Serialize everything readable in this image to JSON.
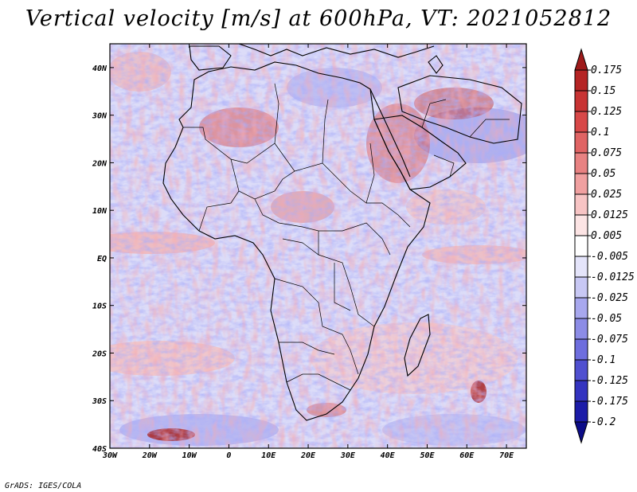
{
  "title": "Vertical velocity [m/s] at 600hPa, VT: 2021052812",
  "credit": "GrADS: IGES/COLA",
  "map": {
    "region": "Africa and Middle East",
    "lon_range": [
      -30,
      75
    ],
    "lat_range": [
      -40,
      45
    ],
    "lon_ticks": [
      "30W",
      "20W",
      "10W",
      "0",
      "10E",
      "20E",
      "30E",
      "40E",
      "50E",
      "60E",
      "70E"
    ],
    "lat_ticks": [
      "40N",
      "30N",
      "20N",
      "10N",
      "EQ",
      "10S",
      "20S",
      "30S",
      "40S"
    ]
  },
  "colorbar": {
    "labels": [
      "0.175",
      "0.15",
      "0.125",
      "0.1",
      "0.075",
      "0.05",
      "0.025",
      "0.0125",
      "0.005",
      "-0.005",
      "-0.0125",
      "-0.025",
      "-0.05",
      "-0.075",
      "-0.1",
      "-0.125",
      "-0.175",
      "-0.2"
    ],
    "colors": [
      "#9e1a1a",
      "#b52424",
      "#c83434",
      "#d84848",
      "#e06464",
      "#e88282",
      "#f0a0a0",
      "#f7c4c4",
      "#fce4e4",
      "#ffffff",
      "#e4e4fa",
      "#c8c8f4",
      "#a8a8ee",
      "#8c8ce6",
      "#6e6ede",
      "#5050d0",
      "#3434c0",
      "#1c1ca8",
      "#0c0c88"
    ]
  }
}
